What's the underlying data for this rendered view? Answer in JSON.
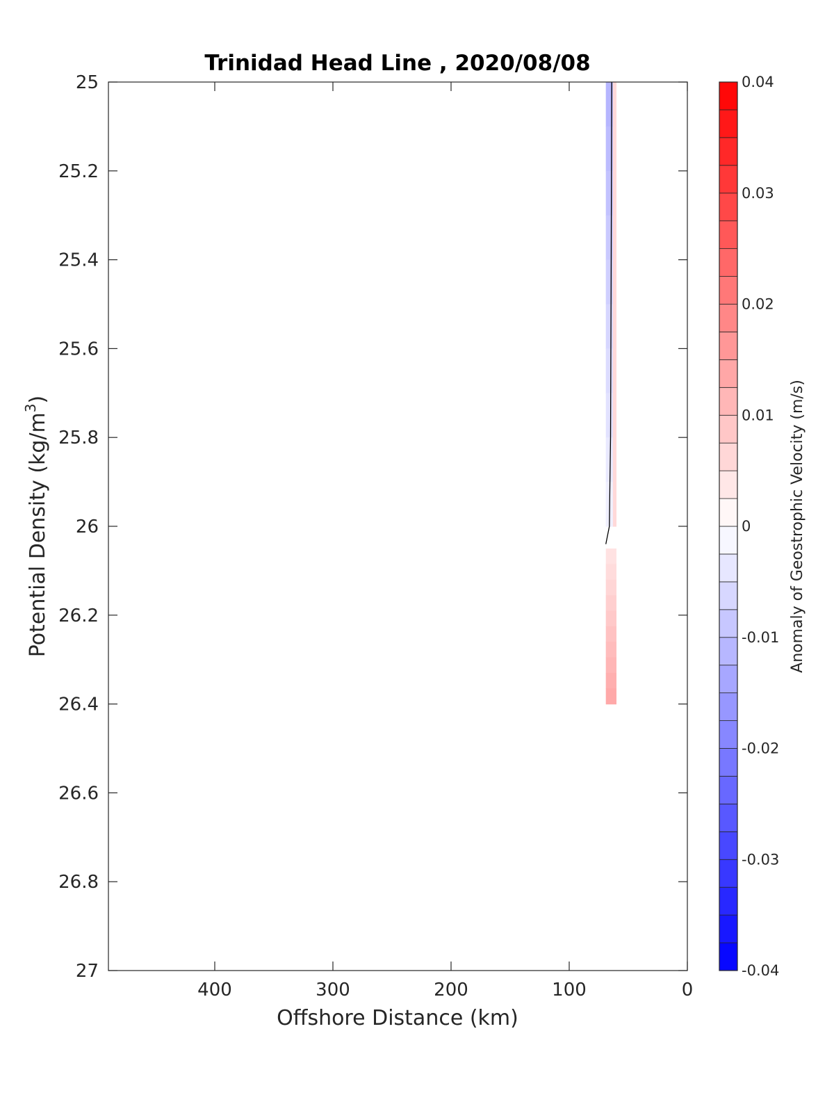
{
  "chart_data": {
    "type": "contour",
    "title": "Trinidad Head Line , 2020/08/08",
    "xlabel": "Offshore Distance (km)",
    "ylabel_main": "Potential Density (kg/m",
    "ylabel_sup": "3",
    "ylabel_close": ")",
    "xlim": [
      490,
      0
    ],
    "x_direction": "reversed",
    "x_ticks": [
      400,
      300,
      200,
      100,
      0
    ],
    "ylim": [
      25,
      27
    ],
    "y_direction": "reversed",
    "y_ticks": [
      "25",
      "25.2",
      "25.4",
      "25.6",
      "25.8",
      "26",
      "26.2",
      "26.4",
      "26.6",
      "26.8",
      "27"
    ],
    "colorbar": {
      "label": "Anomaly of Geostrophic Velocity (m/s)",
      "range": [
        -0.04,
        0.04
      ],
      "levels_step": 0.0025,
      "ticks": [
        "0.04",
        "0.03",
        "0.02",
        "0.01",
        "0",
        "-0.01",
        "-0.02",
        "-0.03",
        "-0.04"
      ],
      "colormap": "blue-white-red",
      "neg_color": "#0000ff",
      "pos_color": "#ff0000"
    },
    "field": {
      "x_extent_km": [
        69,
        60
      ],
      "density_extent": [
        25,
        26.4
      ],
      "negative_region": {
        "x_range_km": [
          69,
          63
        ],
        "density_range": [
          25,
          26.0
        ],
        "value_at_top": -0.012,
        "value_at_bottom": -0.002
      },
      "positive_thin_strip": {
        "x_range_km": [
          63,
          60
        ],
        "density_range": [
          25,
          26.0
        ],
        "value": 0.006
      },
      "positive_region": {
        "x_range_km": [
          69,
          60
        ],
        "density_range": [
          26.05,
          26.4
        ],
        "value_at_top": 0.004,
        "value_at_bottom": 0.014
      }
    },
    "zero_contour": {
      "x": [
        64,
        64.5,
        65,
        65.5,
        66,
        69
      ],
      "y": [
        25.0,
        25.4,
        25.8,
        25.9,
        26.0,
        26.04
      ]
    }
  }
}
